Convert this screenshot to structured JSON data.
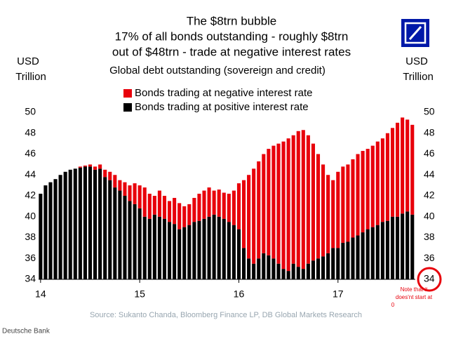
{
  "chart_data": {
    "type": "stacked_bar",
    "title": [
      "The $8trn bubble",
      "17% of all bonds outstanding - roughly $8trn",
      "out of $48trn - trade at negative interest rates"
    ],
    "subtitle": "Global debt outstanding (sovereign and credit)",
    "y_label": [
      "USD",
      "Trillion"
    ],
    "y2_label": [
      "USD",
      "Trillion"
    ],
    "annotation": [
      "Note that it",
      "does'nt start at",
      "0"
    ],
    "source": "Source: Sukanto Chanda, Bloomberg Finance LP, DB Global Markets Research",
    "footer": "Deutsche Bank",
    "x": [
      14.0,
      14.05,
      14.1,
      14.15,
      14.2,
      14.25,
      14.3,
      14.35,
      14.4,
      14.45,
      14.5,
      14.55,
      14.6,
      14.65,
      14.7,
      14.75,
      14.8,
      14.85,
      14.9,
      14.95,
      15.0,
      15.05,
      15.1,
      15.15,
      15.2,
      15.25,
      15.3,
      15.35,
      15.4,
      15.45,
      15.5,
      15.55,
      15.6,
      15.65,
      15.7,
      15.75,
      15.8,
      15.85,
      15.9,
      15.95,
      16.0,
      16.05,
      16.1,
      16.15,
      16.2,
      16.25,
      16.3,
      16.35,
      16.4,
      16.45,
      16.5,
      16.55,
      16.6,
      16.65,
      16.7,
      16.75,
      16.8,
      16.85,
      16.9,
      16.95,
      17.0,
      17.05,
      17.1,
      17.15,
      17.2,
      17.25,
      17.3,
      17.35,
      17.4,
      17.45,
      17.5,
      17.55,
      17.6,
      17.65,
      17.7,
      17.75
    ],
    "series": [
      {
        "name": "Bonds trading at positive interest rate",
        "color": "#000000",
        "values": [
          42.2,
          43.0,
          43.3,
          43.6,
          44.0,
          44.3,
          44.5,
          44.6,
          44.7,
          44.8,
          44.8,
          44.5,
          44.6,
          43.8,
          43.5,
          42.8,
          42.5,
          42.0,
          41.5,
          41.2,
          40.8,
          40.0,
          39.8,
          40.2,
          40.0,
          39.8,
          39.5,
          39.3,
          38.8,
          39.0,
          39.2,
          39.5,
          39.6,
          39.8,
          40.0,
          40.2,
          40.0,
          39.8,
          39.5,
          39.2,
          38.8,
          37.0,
          36.0,
          35.5,
          36.0,
          36.5,
          36.3,
          36.0,
          35.5,
          35.0,
          34.8,
          35.5,
          35.2,
          35.0,
          35.5,
          35.8,
          36.0,
          36.2,
          36.5,
          37.0,
          37.0,
          37.5,
          37.6,
          38.0,
          38.2,
          38.5,
          38.8,
          39.0,
          39.2,
          39.5,
          39.6,
          40.0,
          40.0,
          40.3,
          40.5,
          40.2
        ]
      },
      {
        "name": "Bonds trading at negative interest rate",
        "color": "#e8000b",
        "values": [
          0,
          0,
          0,
          0,
          0,
          0,
          0,
          0,
          0.1,
          0.1,
          0.2,
          0.3,
          0.4,
          0.7,
          0.8,
          1.2,
          1.0,
          1.3,
          1.5,
          2.0,
          2.2,
          2.8,
          2.4,
          1.8,
          2.5,
          2.2,
          2.0,
          2.5,
          2.5,
          2.0,
          2.0,
          2.3,
          2.6,
          2.7,
          2.8,
          2.3,
          2.6,
          2.5,
          2.7,
          3.3,
          4.4,
          6.5,
          8.0,
          9.1,
          9.3,
          9.5,
          10.2,
          10.8,
          11.5,
          12.2,
          12.7,
          12.3,
          13.0,
          13.3,
          12.3,
          11.2,
          10.0,
          8.8,
          7.5,
          6.5,
          7.3,
          7.3,
          7.4,
          7.5,
          7.8,
          7.8,
          7.7,
          7.8,
          8.0,
          8.0,
          8.4,
          8.5,
          9.0,
          9.2,
          8.8,
          8.6
        ]
      }
    ],
    "xlim": [
      13.98,
      17.78
    ],
    "xticks": [
      14,
      15,
      16,
      17
    ],
    "ylim": [
      34,
      50
    ],
    "yticks": [
      34,
      36,
      38,
      40,
      42,
      44,
      46,
      48,
      50
    ],
    "y2lim": [
      34,
      50
    ],
    "y2ticks": [
      34,
      36,
      38,
      40,
      42,
      44,
      46,
      48,
      50
    ],
    "grid": false
  }
}
